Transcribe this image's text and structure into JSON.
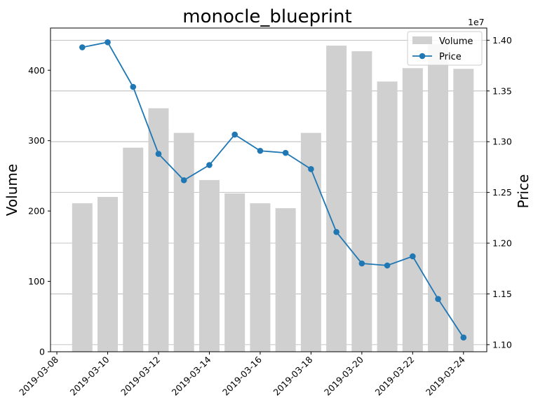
{
  "chart_data": {
    "type": "bar+line",
    "title": "monocle_blueprint",
    "xlabel": "",
    "ylabel_left": "Volume",
    "ylabel_right": "Price",
    "right_axis_offset_label": "1e7",
    "x": [
      "2019-03-09",
      "2019-03-10",
      "2019-03-11",
      "2019-03-12",
      "2019-03-13",
      "2019-03-14",
      "2019-03-15",
      "2019-03-16",
      "2019-03-17",
      "2019-03-18",
      "2019-03-19",
      "2019-03-20",
      "2019-03-21",
      "2019-03-22",
      "2019-03-23",
      "2019-03-24"
    ],
    "x_ticks": [
      "2019-03-08",
      "2019-03-10",
      "2019-03-12",
      "2019-03-14",
      "2019-03-16",
      "2019-03-18",
      "2019-03-20",
      "2019-03-22",
      "2019-03-24"
    ],
    "xlim": [
      "2019-03-07T18:00",
      "2019-03-24T22:00"
    ],
    "series": [
      {
        "name": "Volume",
        "type": "bar",
        "axis": "left",
        "color": "#d0d0d0",
        "values": [
          211,
          220,
          290,
          346,
          311,
          244,
          225,
          211,
          204,
          311,
          435,
          427,
          384,
          403,
          437,
          402
        ]
      },
      {
        "name": "Price",
        "type": "line",
        "axis": "right",
        "color": "#1f77b4",
        "values": [
          13930000,
          13980000,
          13540000,
          12880000,
          12620000,
          12770000,
          13070000,
          12910000,
          12890000,
          12730000,
          12110000,
          11800000,
          11780000,
          11870000,
          11450000,
          11070000
        ]
      }
    ],
    "ylim_left": [
      0,
      460
    ],
    "yticks_left": [
      0,
      100,
      200,
      300,
      400
    ],
    "ylim_right": [
      10930000,
      14120000
    ],
    "yticks_right": [
      11000000,
      11500000,
      12000000,
      12500000,
      13000000,
      13500000,
      14000000
    ],
    "yticks_right_labels": [
      "1.10",
      "1.15",
      "1.20",
      "1.25",
      "1.30",
      "1.35",
      "1.40"
    ],
    "grid": "horizontal-right-axis",
    "legend": "top-right"
  }
}
